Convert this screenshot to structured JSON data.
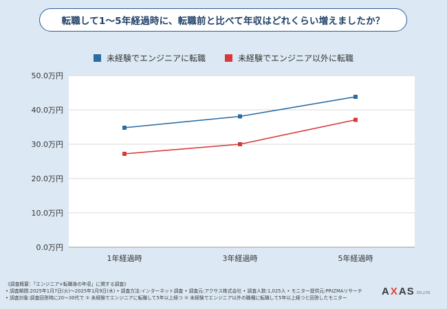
{
  "title": "転職して1〜5年経過時に、転職前と比べて年収はどれくらい増えましたか？",
  "colors": {
    "series1": "#2b6ca3",
    "series2": "#d8383a",
    "accent": "#2b5d8f"
  },
  "chart_data": {
    "type": "line",
    "title": "転職して1〜5年経過時に、転職前と比べて年収はどれくらい増えましたか？",
    "categories": [
      "1年経過時",
      "3年経過時",
      "5年経過時"
    ],
    "series": [
      {
        "name": "未経験でエンジニアに転職",
        "values": [
          34.8,
          38.1,
          43.8
        ]
      },
      {
        "name": "未経験でエンジニア以外に転職",
        "values": [
          27.2,
          30.0,
          37.1
        ]
      }
    ],
    "y_ticks": [
      "0.0万円",
      "10.0万円",
      "20.0万円",
      "30.0万円",
      "40.0万円",
      "50.0万円"
    ],
    "ylim": [
      0,
      50
    ],
    "xlabel": "",
    "ylabel": "",
    "grid": true,
    "legend_position": "top"
  },
  "footnotes": [
    "《調査概要：「エンジニア×転職後の年収」に関する調査》",
    "• 調査期間:2025年1月7日(火)〜2025年1月9日(木)  • 調査方法:インターネット調査  • 調査元:アクサス株式会社  • 調査人数:1,025人  • モニター提供元:PRIZMAリサーチ",
    "• 調査対象:調査回答時に20〜30代で ① 未経験でエンジニアに転職して5年以上経つ  ② 未経験でエンジニア以外の職種に転職して5年以上経つと回答したモニター"
  ],
  "logo": {
    "left": "A",
    "x": "X",
    "right": "AS",
    "sub": "CO.,LTD."
  }
}
